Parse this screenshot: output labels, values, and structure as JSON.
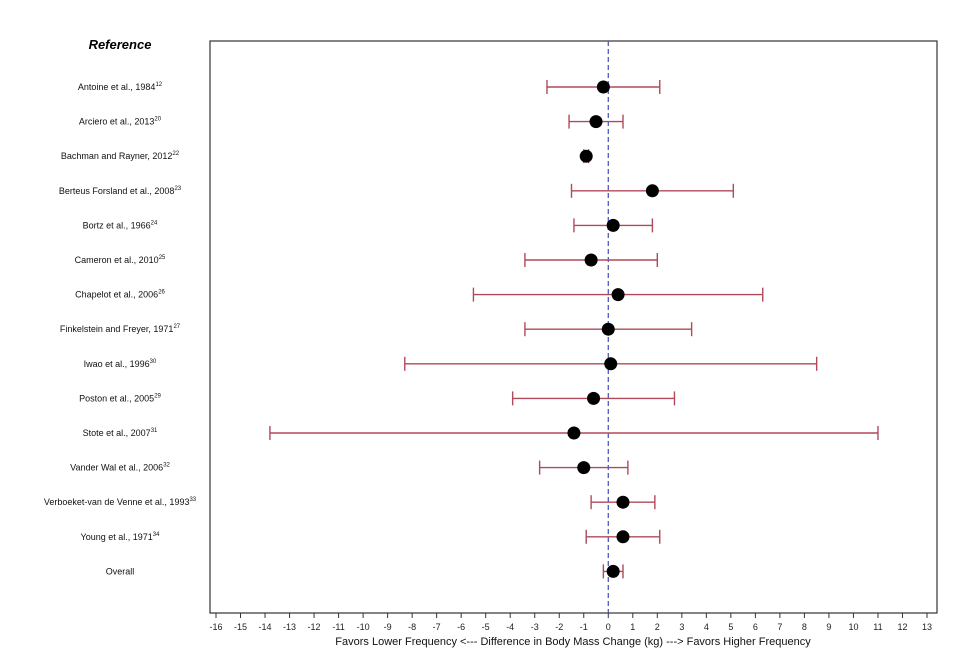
{
  "chart_data": {
    "type": "forest",
    "column_heading": "Reference",
    "xlabel": "Favors Lower Frequency <--- Difference in Body Mass Change (kg) ---> Favors Higher Frequency",
    "xlim": [
      -16,
      13
    ],
    "x_ticks": [
      -16,
      -15,
      -14,
      -13,
      -12,
      -11,
      -10,
      -9,
      -8,
      -7,
      -6,
      -5,
      -4,
      -3,
      -2,
      -1,
      0,
      1,
      2,
      3,
      4,
      5,
      6,
      7,
      8,
      9,
      10,
      11,
      12,
      13
    ],
    "reference_line": 0,
    "colors": {
      "ci": "#b04a5a",
      "point": "#000000",
      "reference_line": "#3f4fb8",
      "frame": "#333333"
    },
    "studies": [
      {
        "label": "Antoine et al., 1984",
        "ref": "12",
        "estimate": -0.2,
        "lower": -2.5,
        "upper": 2.1
      },
      {
        "label": "Arciero et al., 2013",
        "ref": "20",
        "estimate": -0.5,
        "lower": -1.6,
        "upper": 0.6
      },
      {
        "label": "Bachman and Rayner, 2012",
        "ref": "22",
        "estimate": -0.9,
        "lower": -1.0,
        "upper": -0.8
      },
      {
        "label": "Berteus Forsland et al., 2008",
        "ref": "23",
        "estimate": 1.8,
        "lower": -1.5,
        "upper": 5.1
      },
      {
        "label": "Bortz et al., 1966",
        "ref": "24",
        "estimate": 0.2,
        "lower": -1.4,
        "upper": 1.8
      },
      {
        "label": "Cameron et al., 2010",
        "ref": "25",
        "estimate": -0.7,
        "lower": -3.4,
        "upper": 2.0
      },
      {
        "label": "Chapelot et al., 2006",
        "ref": "26",
        "estimate": 0.4,
        "lower": -5.5,
        "upper": 6.3
      },
      {
        "label": "Finkelstein and Freyer, 1971",
        "ref": "27",
        "estimate": 0.0,
        "lower": -3.4,
        "upper": 3.4
      },
      {
        "label": "Iwao et al., 1996",
        "ref": "30",
        "estimate": 0.1,
        "lower": -8.3,
        "upper": 8.5
      },
      {
        "label": "Poston et al., 2005",
        "ref": "29",
        "estimate": -0.6,
        "lower": -3.9,
        "upper": 2.7
      },
      {
        "label": "Stote et al., 2007",
        "ref": "31",
        "estimate": -1.4,
        "lower": -13.8,
        "upper": 11.0
      },
      {
        "label": "Vander Wal et al., 2006",
        "ref": "32",
        "estimate": -1.0,
        "lower": -2.8,
        "upper": 0.8
      },
      {
        "label": "Verboeket-van de Venne et al., 1993",
        "ref": "33",
        "estimate": 0.6,
        "lower": -0.7,
        "upper": 1.9
      },
      {
        "label": "Young et al., 1971",
        "ref": "34",
        "estimate": 0.6,
        "lower": -0.9,
        "upper": 2.1
      },
      {
        "label": "Overall",
        "ref": "",
        "estimate": 0.2,
        "lower": -0.2,
        "upper": 0.6
      }
    ]
  }
}
